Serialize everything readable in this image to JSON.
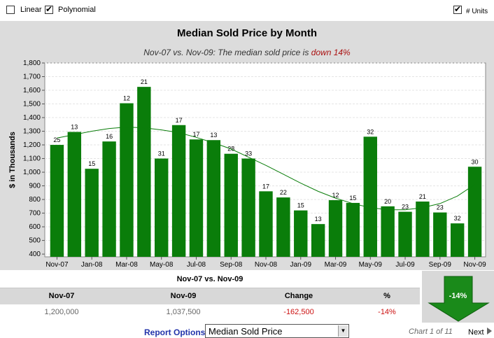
{
  "controls": {
    "linear_label": "Linear",
    "linear_checked": false,
    "poly_label": "Polynomial",
    "poly_checked": true,
    "units_label": "# Units",
    "units_checked": true
  },
  "header": {
    "title": "Median Sold Price by Month",
    "subtitle_prefix": "Nov-07 vs. Nov-09: The median sold price is ",
    "subtitle_highlight": "down 14%"
  },
  "chart_data": {
    "type": "bar",
    "title": "Median Sold Price by Month",
    "ylabel": "$ in Thousands",
    "xlabel": "",
    "ylim": [
      380,
      1800
    ],
    "yticks": [
      400,
      500,
      600,
      700,
      800,
      900,
      1000,
      1100,
      1200,
      1300,
      1400,
      1500,
      1600,
      1700,
      1800
    ],
    "ytick_labels": [
      "400",
      "500",
      "600",
      "700",
      "800",
      "900",
      "1,000",
      "1,100",
      "1,200",
      "1,300",
      "1,400",
      "1,500",
      "1,600",
      "1,700",
      "1,800"
    ],
    "xtick_labels": [
      "Nov-07",
      "Jan-08",
      "Mar-08",
      "May-08",
      "Jul-08",
      "Sep-08",
      "Nov-08",
      "Jan-09",
      "Mar-09",
      "May-09",
      "Jul-09",
      "Sep-09",
      "Nov-09"
    ],
    "xtick_every": 2,
    "grid": true,
    "bar_color": "#0a7d0a",
    "trend_color": "#0a7d0a",
    "trend_type": "polynomial",
    "values": [
      1200,
      1295,
      1025,
      1225,
      1505,
      1625,
      1100,
      1345,
      1240,
      1235,
      1135,
      1100,
      860,
      815,
      720,
      620,
      795,
      775,
      1260,
      750,
      710,
      785,
      705,
      625,
      1040
    ],
    "units": [
      25,
      13,
      15,
      16,
      12,
      21,
      31,
      17,
      17,
      13,
      28,
      33,
      17,
      22,
      15,
      13,
      12,
      15,
      32,
      20,
      23,
      21,
      23,
      32,
      30
    ],
    "trend": [
      1250,
      1275,
      1300,
      1320,
      1330,
      1325,
      1310,
      1290,
      1255,
      1215,
      1170,
      1110,
      1050,
      985,
      920,
      860,
      810,
      770,
      740,
      725,
      725,
      740,
      770,
      825,
      910
    ]
  },
  "summary": {
    "heading": "Nov-07 vs. Nov-09",
    "col1": "Nov-07",
    "col2": "Nov-09",
    "col3": "Change",
    "col4": "%",
    "val1": "1,200,000",
    "val2": "1,037,500",
    "val3": "-162,500",
    "val4": "-14%",
    "big_pct": "-14%"
  },
  "footer": {
    "report_options": "Report Options",
    "selected": "Median Sold Price",
    "chart_counter": "Chart 1 of 11",
    "next": "Next"
  }
}
